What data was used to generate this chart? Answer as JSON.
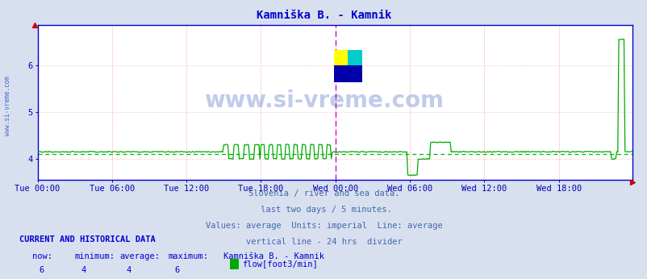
{
  "title": "Kamniška B. - Kamnik",
  "xlabel_ticks": [
    "Tue 00:00",
    "Tue 06:00",
    "Tue 12:00",
    "Tue 18:00",
    "Wed 00:00",
    "Wed 06:00",
    "Wed 12:00",
    "Wed 18:00"
  ],
  "ylabel_ticks": [
    4,
    5,
    6
  ],
  "ylim": [
    3.55,
    6.85
  ],
  "xlim": [
    0,
    575
  ],
  "n_points": 576,
  "avg_value": 4.1,
  "flow_color": "#00aa00",
  "avg_line_color": "#00bb00",
  "title_color": "#0000cc",
  "tick_color": "#0000aa",
  "bg_color": "#d8e0f0",
  "plot_bg_color": "#ffffff",
  "grid_v_color": "#ff9999",
  "grid_h_color": "#ffbbbb",
  "border_color": "#0000cc",
  "divider_color": "#cc00cc",
  "watermark_color": "#3355bb",
  "footer_lines": [
    "Slovenia / river and sea data.",
    " last two days / 5 minutes.",
    "Values: average  Units: imperial  Line: average",
    "vertical line - 24 hrs  divider"
  ],
  "footer_color": "#4466aa",
  "bottom_label_color": "#0000cc",
  "current_label": "CURRENT AND HISTORICAL DATA",
  "stat_labels": [
    "now:",
    "minimum:",
    "average:",
    "maximum:",
    "Kamniška B. - Kamnik"
  ],
  "stat_values": [
    "6",
    "4",
    "4",
    "6"
  ],
  "legend_label": "flow[foot3/min]",
  "legend_color": "#00aa00",
  "watermark": "www.si-vreme.com",
  "watermark_alpha": 0.3,
  "sidebar_text": "www.si-vreme.com",
  "sidebar_color": "#4466cc",
  "logo_colors": [
    "#ffff00",
    "#00cccc",
    "#0000aa"
  ],
  "red_marker_color": "#cc0000",
  "bottom_border_color": "#cc0000"
}
